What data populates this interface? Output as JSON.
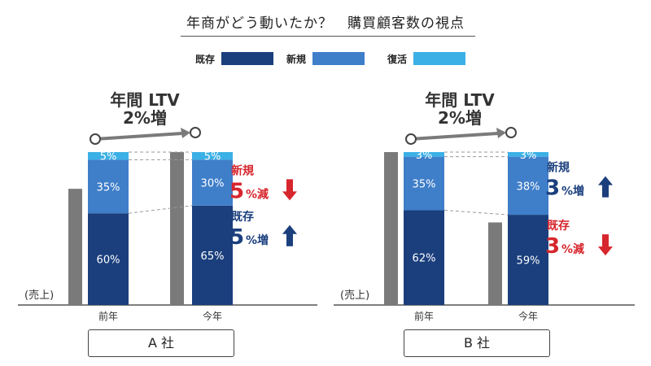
{
  "title": "年商がどう動いたか？　購買顧客数の視点",
  "legend": [
    {
      "label": "既存",
      "color": "#1b3f7d"
    },
    {
      "label": "新規",
      "color": "#3f7ec9"
    },
    {
      "label": "復活",
      "color": "#3bb0e6"
    }
  ],
  "colors": {
    "revenue": "#7a7a7a",
    "increase": "#1b3f7d",
    "decrease": "#d7262d",
    "arrow": "#7a7a7a"
  },
  "chart_data": [
    {
      "type": "bar",
      "company": "A 社",
      "categories": [
        "前年",
        "今年"
      ],
      "series": [
        {
          "name": "既存",
          "values": [
            60,
            65
          ]
        },
        {
          "name": "新規",
          "values": [
            35,
            30
          ]
        },
        {
          "name": "復活",
          "values": [
            5,
            5
          ]
        }
      ],
      "value_labels": {
        "既存": [
          "60%",
          "65%"
        ],
        "新規": [
          "35%",
          "30%"
        ],
        "復活": [
          "5%",
          "5%"
        ]
      },
      "revenue_label": "(売上)",
      "revenue_relative": [
        0.76,
        1.0
      ],
      "ltv": {
        "line1": "年間 LTV",
        "line2": "2%増"
      },
      "changes": [
        {
          "segment": "新規",
          "label": "新規",
          "number": "5",
          "suffix": "%減",
          "direction": "down"
        },
        {
          "segment": "既存",
          "label": "既存",
          "number": "5",
          "suffix": "%増",
          "direction": "up"
        }
      ]
    },
    {
      "type": "bar",
      "company": "B 社",
      "categories": [
        "前年",
        "今年"
      ],
      "series": [
        {
          "name": "既存",
          "values": [
            62,
            59
          ]
        },
        {
          "name": "新規",
          "values": [
            35,
            38
          ]
        },
        {
          "name": "復活",
          "values": [
            3,
            3
          ]
        }
      ],
      "value_labels": {
        "既存": [
          "62%",
          "59%"
        ],
        "新規": [
          "35%",
          "38%"
        ],
        "復活": [
          "3%",
          "3%"
        ]
      },
      "revenue_label": "(売上)",
      "revenue_relative": [
        1.0,
        0.54
      ],
      "ltv": {
        "line1": "年間 LTV",
        "line2": "2%増"
      },
      "changes": [
        {
          "segment": "新規",
          "label": "新規",
          "number": "3",
          "suffix": "%増",
          "direction": "up"
        },
        {
          "segment": "既存",
          "label": "既存",
          "number": "3",
          "suffix": "%減",
          "direction": "down"
        }
      ]
    }
  ]
}
